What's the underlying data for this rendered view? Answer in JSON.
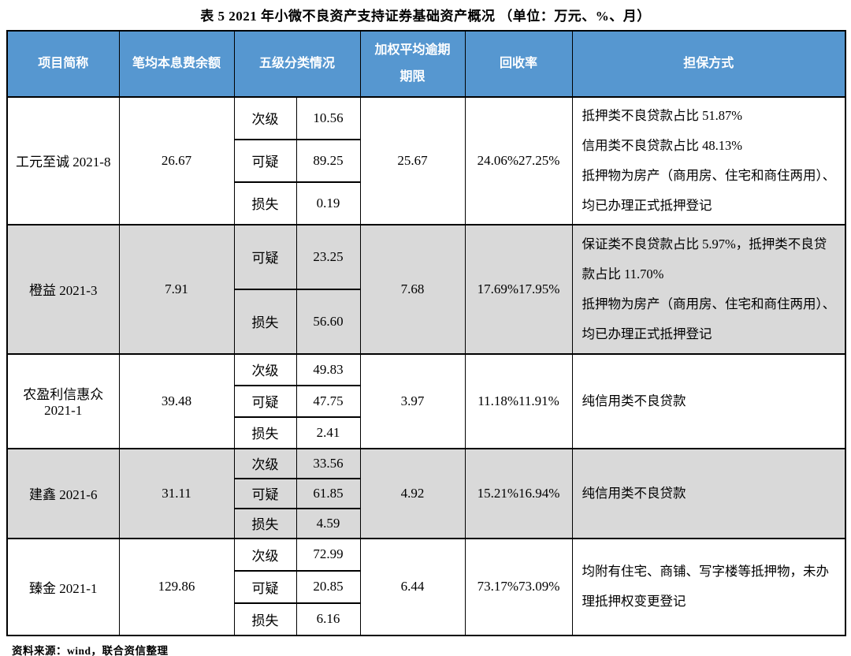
{
  "title": "表 5 2021 年小微不良资产支持证券基础资产概况 （单位：万元、%、月）",
  "source_note": "资料来源：wind，联合资信整理",
  "colors": {
    "header_bg": "#5697D0",
    "header_text": "#ffffff",
    "row_alt_bg": "#d9d9d9",
    "border": "#000000"
  },
  "table": {
    "headers": {
      "project": "项目简称",
      "balance": "笔均本息费余额",
      "classification": "五级分类情况",
      "overdue": "加权平均逾期期限",
      "recovery": "回收率",
      "guarantee": "担保方式"
    },
    "rows": [
      {
        "name": "工元至诚 2021-8",
        "balance": "26.67",
        "classes": [
          {
            "label": "次级",
            "value": "10.56"
          },
          {
            "label": "可疑",
            "value": "89.25"
          },
          {
            "label": "损失",
            "value": "0.19"
          }
        ],
        "overdue": "25.67",
        "recovery": "24.06%27.25%",
        "guarantee": [
          "抵押类不良贷款占比 51.87%",
          "信用类不良贷款占比 48.13%",
          "抵押物为房产（商用房、住宅和商住两用）、均已办理正式抵押登记"
        ]
      },
      {
        "name": "橙益 2021-3",
        "balance": "7.91",
        "classes": [
          {
            "label": "可疑",
            "value": "23.25"
          },
          {
            "label": "损失",
            "value": "56.60"
          }
        ],
        "overdue": "7.68",
        "recovery": "17.69%17.95%",
        "guarantee": [
          "保证类不良贷款占比 5.97%，抵押类不良贷款占比 11.70%",
          "抵押物为房产（商用房、住宅和商住两用）、均已办理正式抵押登记"
        ]
      },
      {
        "name": "农盈利信惠众 2021-1",
        "balance": "39.48",
        "classes": [
          {
            "label": "次级",
            "value": "49.83"
          },
          {
            "label": "可疑",
            "value": "47.75"
          },
          {
            "label": "损失",
            "value": "2.41"
          }
        ],
        "overdue": "3.97",
        "recovery": "11.18%11.91%",
        "guarantee": [
          "纯信用类不良贷款"
        ]
      },
      {
        "name": "建鑫 2021-6",
        "balance": "31.11",
        "classes": [
          {
            "label": "次级",
            "value": "33.56"
          },
          {
            "label": "可疑",
            "value": "61.85"
          },
          {
            "label": "损失",
            "value": "4.59"
          }
        ],
        "overdue": "4.92",
        "recovery": "15.21%16.94%",
        "guarantee": [
          "纯信用类不良贷款"
        ]
      },
      {
        "name": "臻金 2021-1",
        "balance": "129.86",
        "classes": [
          {
            "label": "次级",
            "value": "72.99"
          },
          {
            "label": "可疑",
            "value": "20.85"
          },
          {
            "label": "损失",
            "value": "6.16"
          }
        ],
        "overdue": "6.44",
        "recovery": "73.17%73.09%",
        "guarantee": [
          "均附有住宅、商铺、写字楼等抵押物，未办理抵押权变更登记"
        ]
      }
    ]
  }
}
